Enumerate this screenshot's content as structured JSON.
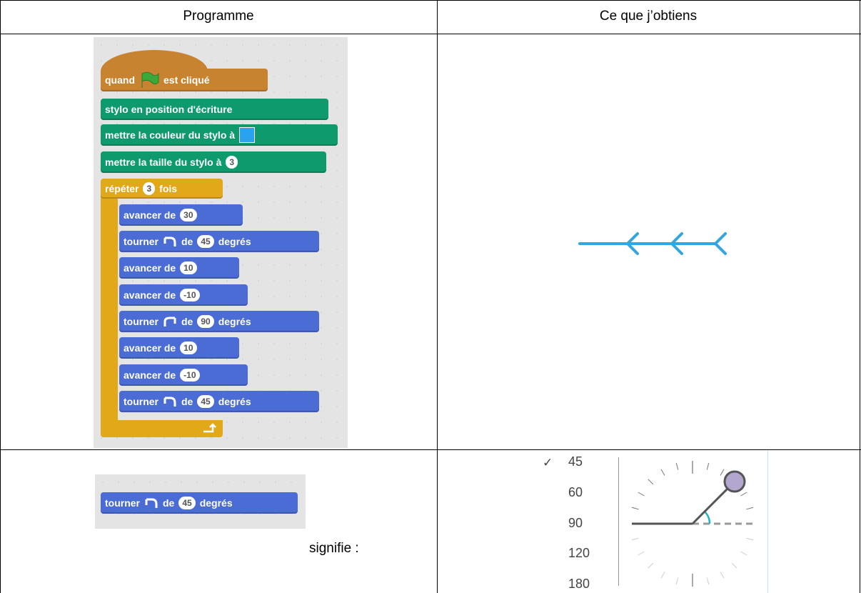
{
  "table": {
    "headers": [
      "Programme",
      "Ce que j’obtiens"
    ],
    "program": {
      "blocks": [
        [
          "quand",
          "est cliqué"
        ],
        [
          "stylo en position d'écriture"
        ],
        [
          "mettre la couleur du stylo à"
        ],
        [
          "mettre la taille du stylo à",
          "3"
        ],
        [
          "répéter",
          "3",
          "fois"
        ],
        [
          "avancer de",
          "30"
        ],
        [
          "tourner",
          "de",
          "45",
          "degrés"
        ],
        [
          "avancer de",
          "10"
        ],
        [
          "avancer de",
          "-10"
        ],
        [
          "tourner",
          "de",
          "90",
          "degrés"
        ],
        [
          "avancer de",
          "10"
        ],
        [
          "avancer de",
          "-10"
        ],
        [
          "tourner",
          "de",
          "45",
          "degrés"
        ]
      ]
    },
    "legend_block": [
      "tourner",
      "de",
      "45",
      "degrés"
    ],
    "meaning": "signifie :",
    "angle_menu": {
      "check": "✓",
      "options": [
        "45",
        "60",
        "90",
        "120",
        "180"
      ]
    }
  }
}
